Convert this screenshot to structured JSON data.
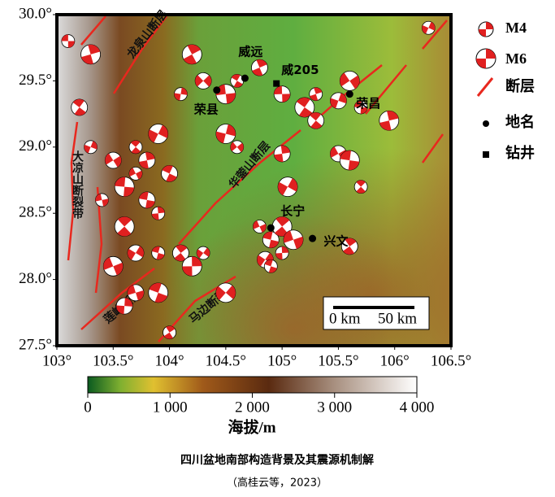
{
  "map": {
    "lon_ticks": [
      {
        "value": 103,
        "label": "103°"
      },
      {
        "value": 103.5,
        "label": "103.5°"
      },
      {
        "value": 104,
        "label": "104°"
      },
      {
        "value": 104.5,
        "label": "104.5°"
      },
      {
        "value": 105,
        "label": "105°"
      },
      {
        "value": 105.5,
        "label": "105.5°"
      },
      {
        "value": 106,
        "label": "106°"
      },
      {
        "value": 106.5,
        "label": "106.5°"
      }
    ],
    "lat_ticks": [
      {
        "value": 27.5,
        "label": "27.5°"
      },
      {
        "value": 28,
        "label": "28.0°"
      },
      {
        "value": 28.5,
        "label": "28.5°"
      },
      {
        "value": 29,
        "label": "29.0°"
      },
      {
        "value": 29.5,
        "label": "29.5°"
      },
      {
        "value": 30,
        "label": "30.0°"
      }
    ],
    "xlim": [
      103,
      106.5
    ],
    "ylim": [
      27.5,
      30
    ],
    "legend": [
      "M4",
      "M6",
      "断层",
      "地名",
      "钻井"
    ],
    "places": [
      {
        "name": "威远",
        "lon": 104.67,
        "lat": 29.52,
        "kind": "地名"
      },
      {
        "name": "威205",
        "lon": 104.95,
        "lat": 29.48,
        "kind": "钻井"
      },
      {
        "name": "荣县",
        "lon": 104.42,
        "lat": 29.43,
        "kind": "地名"
      },
      {
        "name": "荣昌",
        "lon": 105.6,
        "lat": 29.4,
        "kind": "地名"
      },
      {
        "name": "长宁",
        "lon": 104.9,
        "lat": 28.39,
        "kind": "地名"
      },
      {
        "name": "兴文",
        "lon": 105.27,
        "lat": 28.31,
        "kind": "地名"
      }
    ],
    "faults": [
      "龙泉山断层",
      "大凉山断裂带",
      "华蓥山断层",
      "莲峰断层",
      "马边断裂"
    ],
    "scale_bar": [
      "0 km",
      "50 km"
    ],
    "events": [
      [
        103.1,
        29.8
      ],
      [
        103.2,
        29.3
      ],
      [
        103.3,
        29.7
      ],
      [
        103.3,
        29.0
      ],
      [
        103.5,
        28.9
      ],
      [
        103.6,
        28.7
      ],
      [
        103.7,
        29.0
      ],
      [
        103.8,
        28.9
      ],
      [
        103.9,
        29.1
      ],
      [
        103.7,
        28.8
      ],
      [
        103.8,
        28.6
      ],
      [
        103.6,
        28.4
      ],
      [
        103.9,
        28.5
      ],
      [
        103.7,
        28.2
      ],
      [
        103.5,
        28.1
      ],
      [
        103.9,
        28.2
      ],
      [
        104.1,
        28.2
      ],
      [
        104.2,
        28.1
      ],
      [
        104.3,
        28.2
      ],
      [
        103.7,
        27.9
      ],
      [
        103.9,
        27.9
      ],
      [
        104.0,
        27.6
      ],
      [
        103.6,
        27.8
      ],
      [
        104.5,
        27.9
      ],
      [
        103.4,
        28.6
      ],
      [
        104.0,
        28.8
      ],
      [
        104.2,
        29.7
      ],
      [
        104.1,
        29.4
      ],
      [
        104.3,
        29.5
      ],
      [
        104.5,
        29.4
      ],
      [
        104.6,
        29.5
      ],
      [
        104.8,
        29.6
      ],
      [
        104.5,
        29.1
      ],
      [
        104.6,
        29.0
      ],
      [
        105.0,
        29.4
      ],
      [
        105.2,
        29.3
      ],
      [
        105.3,
        29.4
      ],
      [
        105.5,
        29.35
      ],
      [
        105.6,
        29.5
      ],
      [
        105.7,
        29.3
      ],
      [
        105.3,
        29.2
      ],
      [
        105.95,
        29.2
      ],
      [
        106.3,
        29.9
      ],
      [
        105.5,
        28.95
      ],
      [
        105.6,
        28.9
      ],
      [
        105.7,
        28.7
      ],
      [
        105.0,
        28.95
      ],
      [
        105.05,
        28.7
      ],
      [
        104.8,
        28.4
      ],
      [
        104.9,
        28.3
      ],
      [
        105.0,
        28.4
      ],
      [
        105.0,
        28.2
      ],
      [
        104.85,
        28.15
      ],
      [
        105.1,
        28.3
      ],
      [
        104.9,
        28.1
      ],
      [
        105.6,
        28.25
      ]
    ],
    "colorbar": {
      "ticks": [
        0,
        {
          "value": 1000,
          "label": "1 000"
        },
        {
          "value": 2000,
          "label": "2 000"
        },
        {
          "value": 3000,
          "label": "3 000"
        },
        {
          "value": 4000,
          "label": "4 000"
        }
      ],
      "lim": [
        0,
        4000
      ],
      "label": "海拔/m"
    }
  },
  "caption": {
    "title": "四川盆地南部构造背景及其震源机制解",
    "source": "（高桂云等，2023）"
  }
}
